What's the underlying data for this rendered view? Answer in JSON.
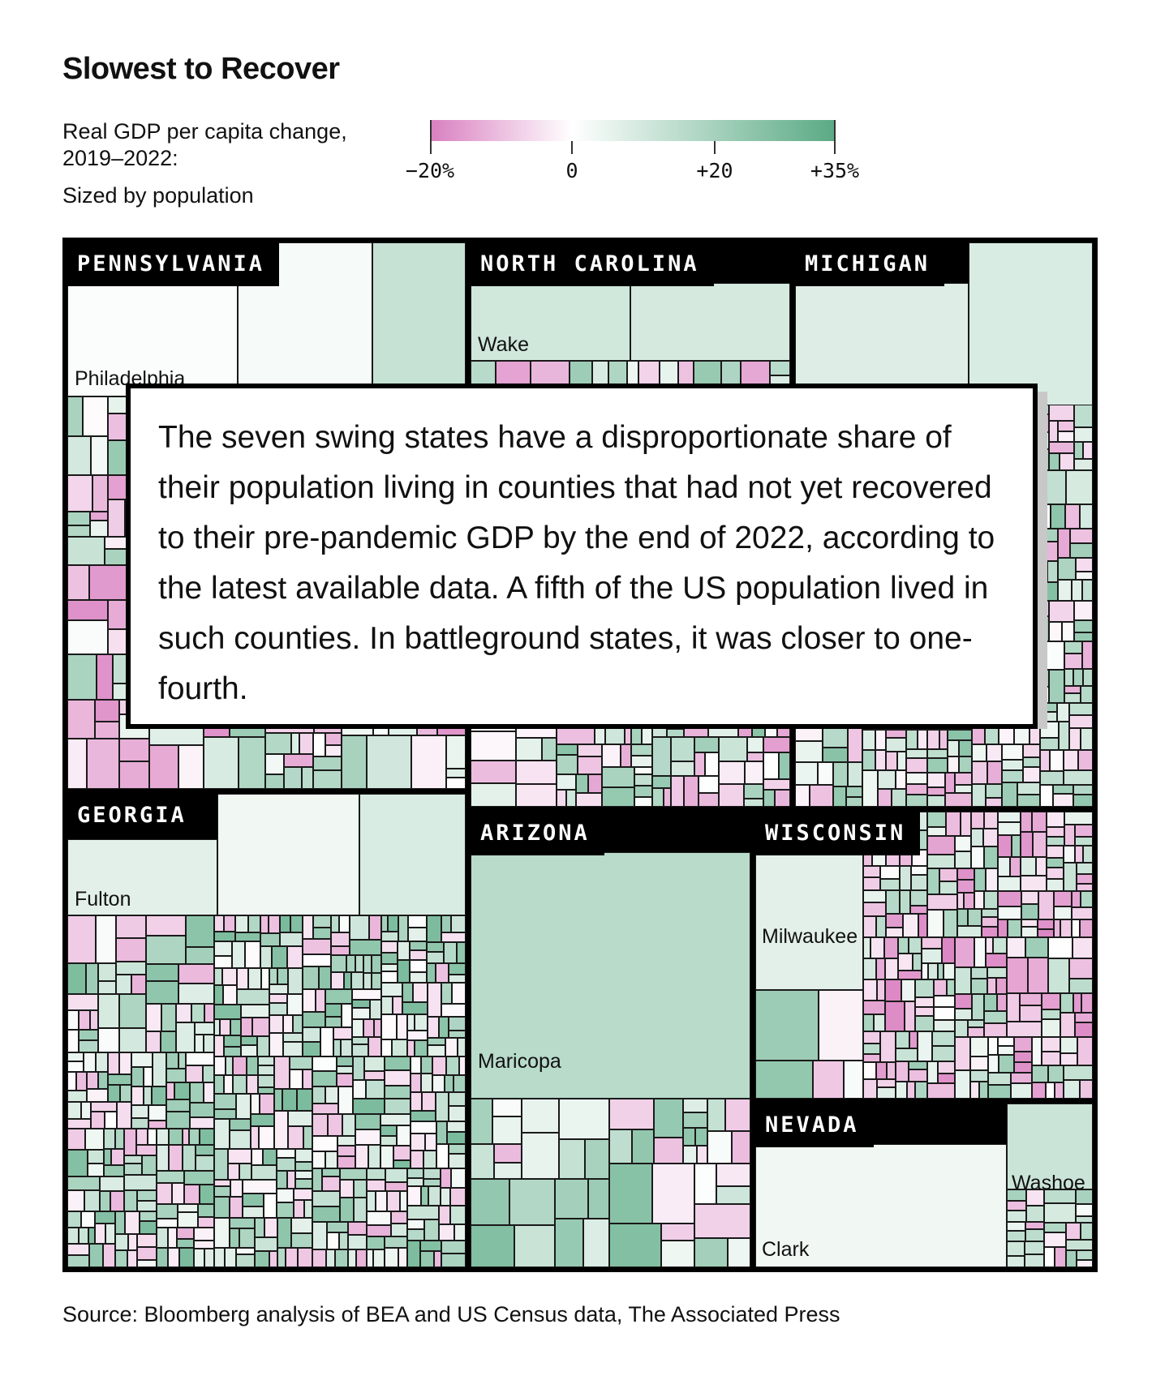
{
  "title": "Slowest to Recover",
  "subtitle": "Real GDP per capita change, 2019–2022:",
  "sized_by": "Sized by population",
  "legend": {
    "labels": [
      "−20%",
      "0",
      "+20",
      "+35%"
    ],
    "min_color": "#d97fc0",
    "zero_color": "#ffffff",
    "max_color": "#5aaa84"
  },
  "callout": "The seven swing states have a disproportionate share of their population living in counties that had not yet recovered to their pre-pandemic GDP by the end of 2022, according to the latest available data. A fifth of the US population lived in such counties. In battleground states, it was closer to one-fourth.",
  "source": "Source: Bloomberg analysis of BEA and US Census data, The Associated Press",
  "chart_data": {
    "type": "treemap",
    "title": "Slowest to Recover",
    "value_description": "Real GDP per capita change, 2019–2022 (%)",
    "size_description": "Population",
    "color_range": [
      -20,
      35
    ],
    "states": [
      {
        "name": "PENNSYLVANIA",
        "labeled_counties": [
          {
            "name": "Philadelphia",
            "change": 1
          }
        ]
      },
      {
        "name": "NORTH CAROLINA",
        "labeled_counties": [
          {
            "name": "Wake",
            "change": 10
          }
        ]
      },
      {
        "name": "MICHIGAN",
        "labeled_counties": []
      },
      {
        "name": "GEORGIA",
        "labeled_counties": [
          {
            "name": "Fulton",
            "change": 6
          }
        ]
      },
      {
        "name": "ARIZONA",
        "labeled_counties": [
          {
            "name": "Maricopa",
            "change": 15
          }
        ]
      },
      {
        "name": "WISCONSIN",
        "labeled_counties": [
          {
            "name": "Milwaukee",
            "change": 6
          }
        ]
      },
      {
        "name": "NEVADA",
        "labeled_counties": [
          {
            "name": "Clark",
            "change": 3
          },
          {
            "name": "Washoe",
            "change": 11
          }
        ]
      }
    ]
  }
}
